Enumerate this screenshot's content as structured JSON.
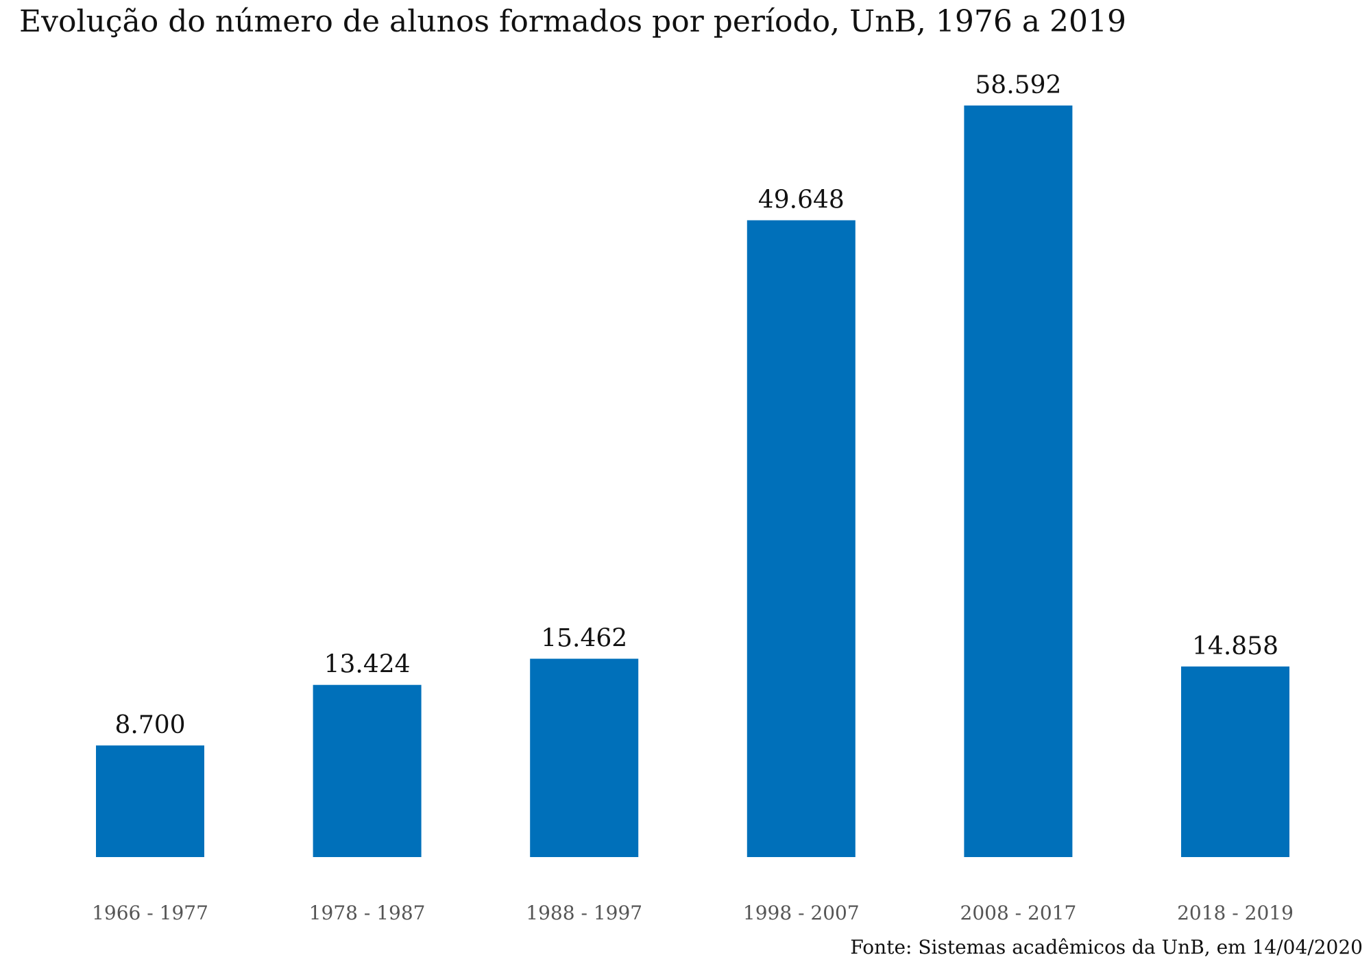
{
  "chart_data": {
    "type": "bar",
    "title": "Evolução do número de alunos formados por período, UnB, 1976 a 2019",
    "xlabel": "",
    "ylabel": "",
    "categories": [
      "1966 - 1977",
      "1978 - 1987",
      "1988 - 1997",
      "1998 - 2007",
      "2008 - 2017",
      "2018 - 2019"
    ],
    "values": [
      8700,
      13424,
      15462,
      49648,
      58592,
      14858
    ],
    "value_labels": [
      "8.700",
      "13.424",
      "15.462",
      "49.648",
      "58.592",
      "14.858"
    ],
    "ylim": [
      0,
      58592
    ],
    "grid": false,
    "legend": "none",
    "bar_color": "#0070BA",
    "source": "Fonte: Sistemas acadêmicos da UnB, em 14/04/2020"
  }
}
